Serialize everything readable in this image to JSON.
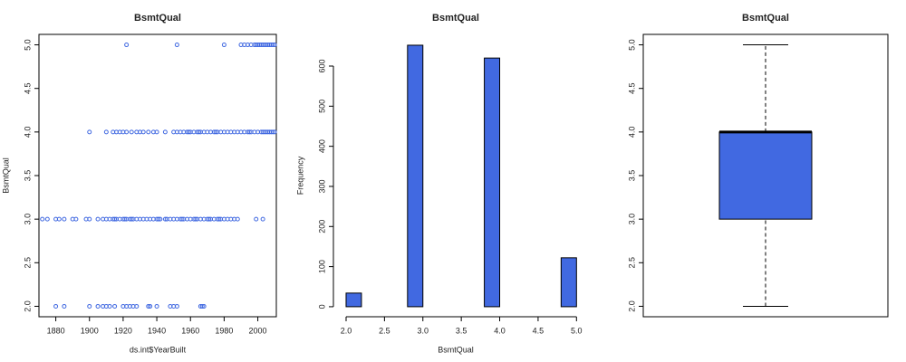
{
  "chart_data": [
    {
      "type": "scatter",
      "title": "BsmtQual",
      "xlabel": "ds.int$YearBuilt",
      "ylabel": "BsmtQual",
      "color": "#4169e1",
      "x": [
        1922,
        1952,
        1980,
        1990,
        1992,
        1994,
        1996,
        1998,
        1999,
        2000,
        2001,
        2002,
        2003,
        2004,
        2005,
        2006,
        2007,
        2008,
        2009,
        2010,
        1900,
        1910,
        1914,
        1916,
        1918,
        1920,
        1922,
        1925,
        1928,
        1930,
        1932,
        1935,
        1938,
        1940,
        1945,
        1950,
        1952,
        1954,
        1956,
        1958,
        1959,
        1960,
        1962,
        1964,
        1965,
        1966,
        1968,
        1970,
        1972,
        1974,
        1975,
        1976,
        1978,
        1980,
        1982,
        1984,
        1986,
        1988,
        1990,
        1992,
        1994,
        1995,
        1996,
        1998,
        2000,
        2002,
        2003,
        2004,
        2005,
        2006,
        2007,
        2008,
        2009,
        2010,
        1872,
        1875,
        1880,
        1882,
        1885,
        1890,
        1892,
        1898,
        1900,
        1905,
        1908,
        1910,
        1912,
        1914,
        1915,
        1916,
        1918,
        1920,
        1921,
        1922,
        1924,
        1925,
        1926,
        1928,
        1930,
        1932,
        1934,
        1936,
        1938,
        1940,
        1941,
        1942,
        1945,
        1946,
        1948,
        1950,
        1952,
        1954,
        1955,
        1956,
        1958,
        1960,
        1962,
        1963,
        1964,
        1966,
        1968,
        1970,
        1971,
        1972,
        1974,
        1976,
        1977,
        1978,
        1980,
        1982,
        1984,
        1986,
        1988,
        1999,
        2003,
        1880,
        1885,
        1900,
        1905,
        1908,
        1910,
        1912,
        1915,
        1920,
        1922,
        1924,
        1926,
        1928,
        1935,
        1936,
        1940,
        1948,
        1950,
        1952,
        1966,
        1967,
        1968
      ],
      "values": [
        5,
        5,
        5,
        5,
        5,
        5,
        5,
        5,
        5,
        5,
        5,
        5,
        5,
        5,
        5,
        5,
        5,
        5,
        5,
        5,
        4,
        4,
        4,
        4,
        4,
        4,
        4,
        4,
        4,
        4,
        4,
        4,
        4,
        4,
        4,
        4,
        4,
        4,
        4,
        4,
        4,
        4,
        4,
        4,
        4,
        4,
        4,
        4,
        4,
        4,
        4,
        4,
        4,
        4,
        4,
        4,
        4,
        4,
        4,
        4,
        4,
        4,
        4,
        4,
        4,
        4,
        4,
        4,
        4,
        4,
        4,
        4,
        4,
        4,
        3,
        3,
        3,
        3,
        3,
        3,
        3,
        3,
        3,
        3,
        3,
        3,
        3,
        3,
        3,
        3,
        3,
        3,
        3,
        3,
        3,
        3,
        3,
        3,
        3,
        3,
        3,
        3,
        3,
        3,
        3,
        3,
        3,
        3,
        3,
        3,
        3,
        3,
        3,
        3,
        3,
        3,
        3,
        3,
        3,
        3,
        3,
        3,
        3,
        3,
        3,
        3,
        3,
        3,
        3,
        3,
        3,
        3,
        3,
        3,
        3,
        2,
        2,
        2,
        2,
        2,
        2,
        2,
        2,
        2,
        2,
        2,
        2,
        2,
        2,
        2,
        2,
        2,
        2,
        2,
        2,
        2,
        2
      ],
      "xlim": [
        1870,
        2011
      ],
      "xticks": [
        1880,
        1900,
        1920,
        1940,
        1960,
        1980,
        2000
      ],
      "ylim": [
        1.88,
        5.12
      ],
      "yticks": [
        {
          "value": 2,
          "label": "2.0"
        },
        {
          "value": 2.5,
          "label": "2.5"
        },
        {
          "value": 3,
          "label": "3.0"
        },
        {
          "value": 3.5,
          "label": "3.5"
        },
        {
          "value": 4,
          "label": "4.0"
        },
        {
          "value": 4.5,
          "label": "4.5"
        },
        {
          "value": 5,
          "label": "5.0"
        }
      ]
    },
    {
      "type": "histogram",
      "title": "BsmtQual",
      "xlabel": "BsmtQual",
      "ylabel": "Frequency",
      "color": "#4169e1",
      "bins": [
        2.0,
        2.2,
        2.4,
        2.6,
        2.8,
        3.0,
        3.2,
        3.4,
        3.6,
        3.8,
        4.0,
        4.2,
        4.4,
        4.6,
        4.8,
        5.0
      ],
      "values": [
        34,
        0,
        0,
        0,
        652,
        0,
        0,
        0,
        0,
        620,
        0,
        0,
        0,
        0,
        122
      ],
      "xlim": [
        1.835,
        5.02
      ],
      "xticks": [
        {
          "value": 2,
          "label": "2.0"
        },
        {
          "value": 2.5,
          "label": "2.5"
        },
        {
          "value": 3,
          "label": "3.0"
        },
        {
          "value": 3.5,
          "label": "3.5"
        },
        {
          "value": 4,
          "label": "4.0"
        },
        {
          "value": 4.5,
          "label": "4.5"
        },
        {
          "value": 5,
          "label": "5.0"
        }
      ],
      "ylim": [
        -25,
        679
      ],
      "yticks": [
        0,
        100,
        200,
        300,
        400,
        500,
        600
      ]
    },
    {
      "type": "box",
      "title": "BsmtQual",
      "color": "#4169e1",
      "whisker_low": 2,
      "q1": 3,
      "median": 4,
      "q3": 4,
      "whisker_high": 5,
      "ylim": [
        1.88,
        5.12
      ],
      "yticks": [
        {
          "value": 2,
          "label": "2.0"
        },
        {
          "value": 2.5,
          "label": "2.5"
        },
        {
          "value": 3,
          "label": "3.0"
        },
        {
          "value": 3.5,
          "label": "3.5"
        },
        {
          "value": 4,
          "label": "4.0"
        },
        {
          "value": 4.5,
          "label": "4.5"
        },
        {
          "value": 5,
          "label": "5.0"
        }
      ]
    }
  ]
}
